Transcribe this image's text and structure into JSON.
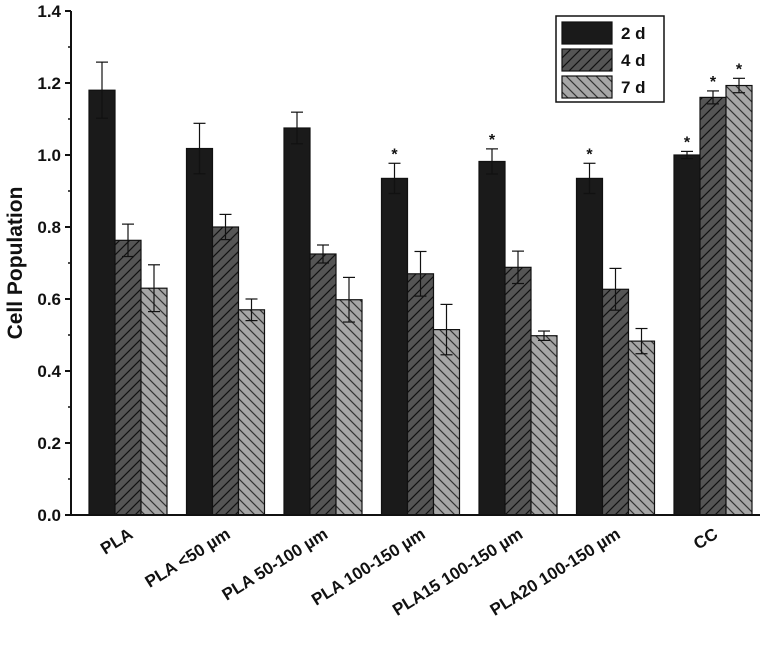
{
  "chart_data": {
    "type": "bar",
    "title": "",
    "xlabel": "",
    "ylabel": "Cell Population",
    "ylim": [
      0.0,
      1.4
    ],
    "yticks": [
      "0.0",
      "0.2",
      "0.4",
      "0.6",
      "0.8",
      "1.0",
      "1.2",
      "1.4"
    ],
    "categories": [
      "PLA",
      "PLA <50 µm",
      "PLA 50-100 µm",
      "PLA 100-150 µm",
      "PLA15 100-150 µm",
      "PLA20 100-150 µm",
      "CC"
    ],
    "significance_marker": "*",
    "legend_position": "top-right",
    "series": [
      {
        "name": "2 d",
        "color": "#1a1a1a",
        "pattern": "solid",
        "values": [
          1.18,
          1.018,
          1.075,
          0.935,
          0.982,
          0.935,
          1.0
        ],
        "errors": [
          0.078,
          0.07,
          0.044,
          0.042,
          0.035,
          0.042,
          0.01
        ],
        "significant": [
          false,
          false,
          false,
          true,
          true,
          true,
          true
        ]
      },
      {
        "name": "4 d",
        "color": "#555555",
        "pattern": "hatch-forward",
        "values": [
          0.763,
          0.8,
          0.725,
          0.67,
          0.688,
          0.627,
          1.16
        ],
        "errors": [
          0.045,
          0.035,
          0.025,
          0.062,
          0.045,
          0.058,
          0.018
        ],
        "significant": [
          false,
          false,
          false,
          false,
          false,
          false,
          true
        ]
      },
      {
        "name": "7 d",
        "color": "#a6a6a6",
        "pattern": "hatch-back",
        "values": [
          0.63,
          0.57,
          0.598,
          0.515,
          0.498,
          0.483,
          1.193
        ],
        "errors": [
          0.065,
          0.03,
          0.062,
          0.07,
          0.013,
          0.035,
          0.02
        ],
        "significant": [
          false,
          false,
          false,
          false,
          false,
          false,
          true
        ]
      }
    ]
  }
}
